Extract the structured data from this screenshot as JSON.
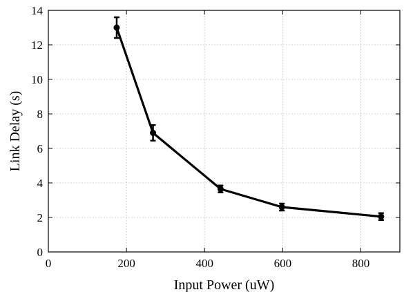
{
  "chart_data": {
    "type": "line",
    "title": "",
    "xlabel": "Input Power (uW)",
    "ylabel": "Link Delay (s)",
    "xlim": [
      0,
      900
    ],
    "ylim": [
      0,
      14
    ],
    "xticks": [
      0,
      200,
      400,
      600,
      800
    ],
    "yticks": [
      0,
      2,
      4,
      6,
      8,
      10,
      12,
      14
    ],
    "grid": true,
    "grid_style": "dotted",
    "legend": false,
    "series": [
      {
        "color": "#000000",
        "marker": "circle",
        "points": [
          {
            "x": 175,
            "y": 13.0,
            "err": 0.6
          },
          {
            "x": 268,
            "y": 6.9,
            "err": 0.45
          },
          {
            "x": 441,
            "y": 3.65,
            "err": 0.2
          },
          {
            "x": 598,
            "y": 2.6,
            "err": 0.2
          },
          {
            "x": 852,
            "y": 2.05,
            "err": 0.2
          }
        ]
      }
    ]
  }
}
